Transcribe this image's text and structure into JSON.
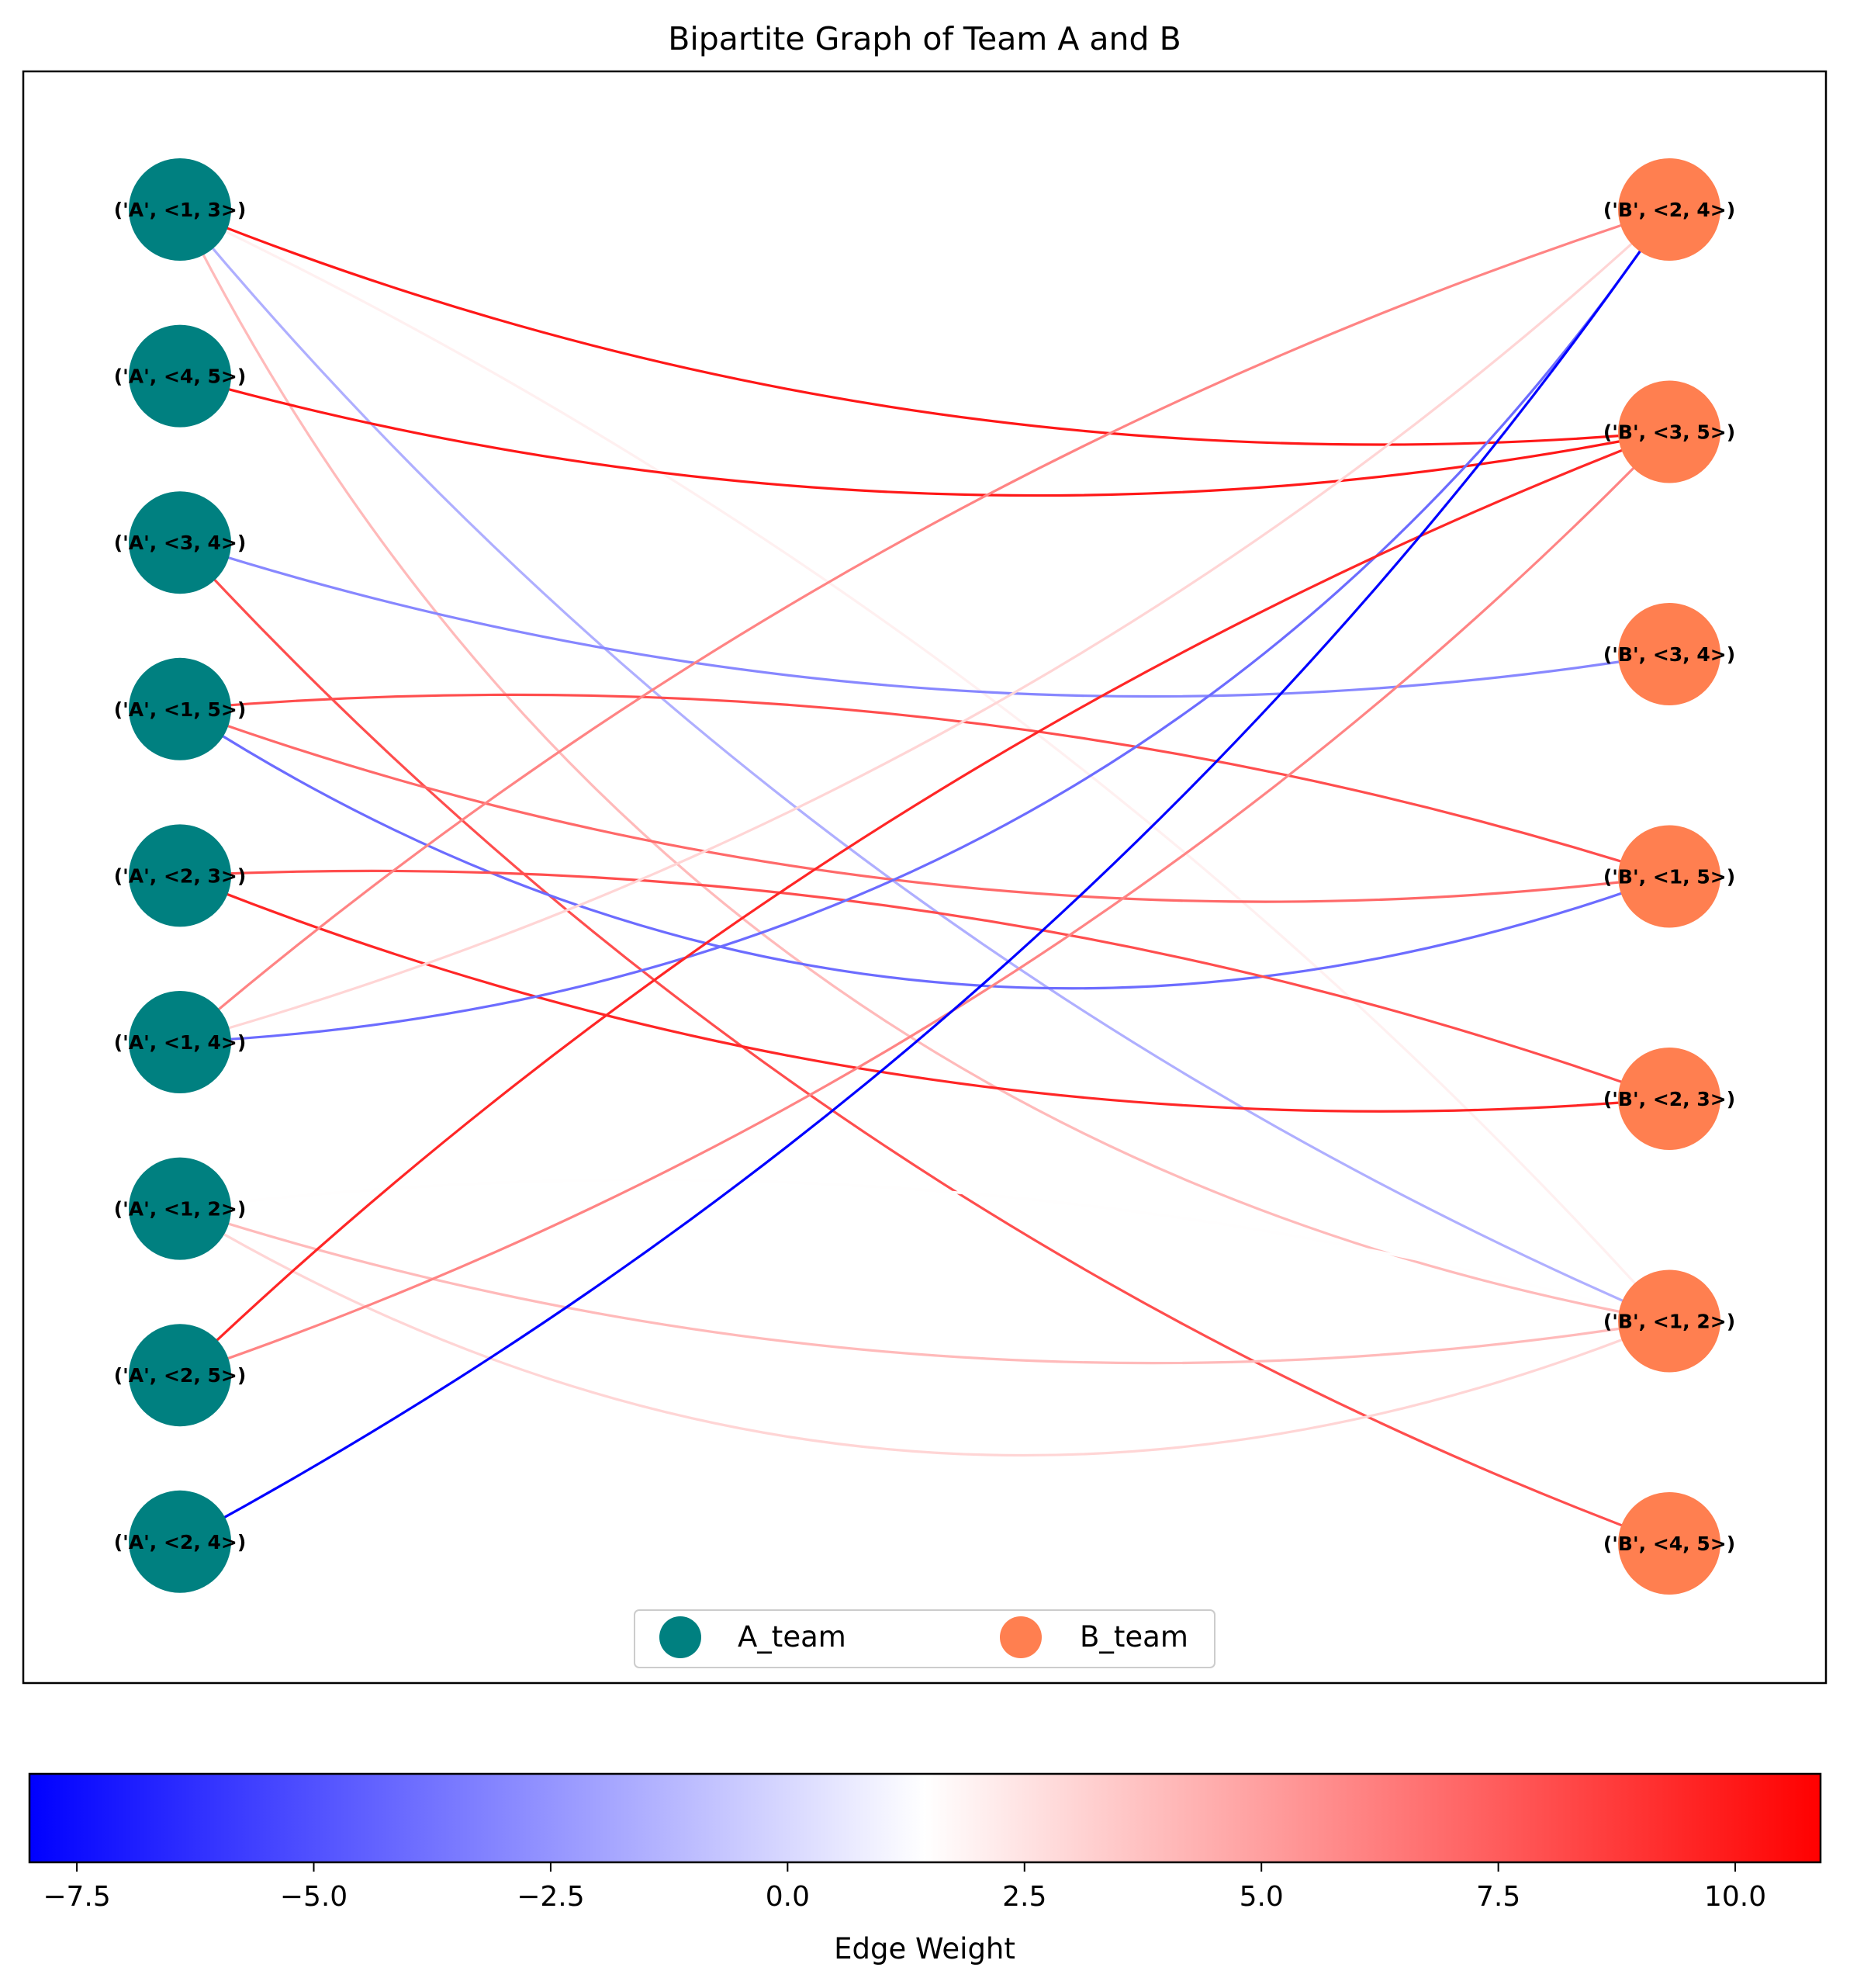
{
  "title": "Bipartite Graph of Team A and B",
  "legend": {
    "placement": "lower-center",
    "entries": [
      {
        "label": "A_team",
        "color": "#008080"
      },
      {
        "label": "B_team",
        "color": "#ff7f50"
      }
    ]
  },
  "colorbar": {
    "label": "Edge Weight",
    "range": [
      -8.0,
      10.9
    ],
    "ticks": [
      {
        "value": -7.5,
        "label": "−7.5"
      },
      {
        "value": -5.0,
        "label": "−5.0"
      },
      {
        "value": -2.5,
        "label": "−2.5"
      },
      {
        "value": 0.0,
        "label": "0.0"
      },
      {
        "value": 2.5,
        "label": "2.5"
      },
      {
        "value": 5.0,
        "label": "5.0"
      },
      {
        "value": 7.5,
        "label": "7.5"
      },
      {
        "value": 10.0,
        "label": "10.0"
      }
    ],
    "colormap": "bwr"
  },
  "nodes_a": [
    {
      "id": "A13",
      "label": "('A', <1, 3>)"
    },
    {
      "id": "A45",
      "label": "('A', <4, 5>)"
    },
    {
      "id": "A34",
      "label": "('A', <3, 4>)"
    },
    {
      "id": "A15",
      "label": "('A', <1, 5>)"
    },
    {
      "id": "A23",
      "label": "('A', <2, 3>)"
    },
    {
      "id": "A14",
      "label": "('A', <1, 4>)"
    },
    {
      "id": "A12",
      "label": "('A', <1, 2>)"
    },
    {
      "id": "A25",
      "label": "('A', <2, 5>)"
    },
    {
      "id": "A24",
      "label": "('A', <2, 4>)"
    }
  ],
  "nodes_b": [
    {
      "id": "B24",
      "label": "('B', <2, 4>)"
    },
    {
      "id": "B35",
      "label": "('B', <3, 5>)"
    },
    {
      "id": "B34",
      "label": "('B', <3, 4>)"
    },
    {
      "id": "B15",
      "label": "('B', <1, 5>)"
    },
    {
      "id": "B23",
      "label": "('B', <2, 3>)"
    },
    {
      "id": "B12",
      "label": "('B', <1, 2>)"
    },
    {
      "id": "B45",
      "label": "('B', <4, 5>)"
    }
  ],
  "edges": [
    {
      "source": "A13",
      "target": "B35",
      "weight": 10.0
    },
    {
      "source": "A13",
      "target": "B12",
      "weight": -1.5
    },
    {
      "source": "A13",
      "target": "B12",
      "weight": 2.0
    },
    {
      "source": "A13",
      "target": "B12",
      "weight": 4.0
    },
    {
      "source": "A45",
      "target": "B35",
      "weight": 10.0
    },
    {
      "source": "A34",
      "target": "B34",
      "weight": -3.0
    },
    {
      "source": "A34",
      "target": "B45",
      "weight": 8.0
    },
    {
      "source": "A15",
      "target": "B15",
      "weight": 7.0
    },
    {
      "source": "A15",
      "target": "B15",
      "weight": 8.0
    },
    {
      "source": "A15",
      "target": "B15",
      "weight": -4.0
    },
    {
      "source": "A23",
      "target": "B23",
      "weight": 9.5
    },
    {
      "source": "A23",
      "target": "B23",
      "weight": 8.0
    },
    {
      "source": "A14",
      "target": "B24",
      "weight": 3.0
    },
    {
      "source": "A14",
      "target": "B24",
      "weight": 6.0
    },
    {
      "source": "A14",
      "target": "B24",
      "weight": -4.0
    },
    {
      "source": "A12",
      "target": "B12",
      "weight": 4.0
    },
    {
      "source": "A12",
      "target": "B12",
      "weight": 1.5
    },
    {
      "source": "A12",
      "target": "B12",
      "weight": 3.0
    },
    {
      "source": "A25",
      "target": "B35",
      "weight": 6.0
    },
    {
      "source": "A25",
      "target": "B35",
      "weight": 9.5
    },
    {
      "source": "A24",
      "target": "B24",
      "weight": -8.0
    }
  ]
}
